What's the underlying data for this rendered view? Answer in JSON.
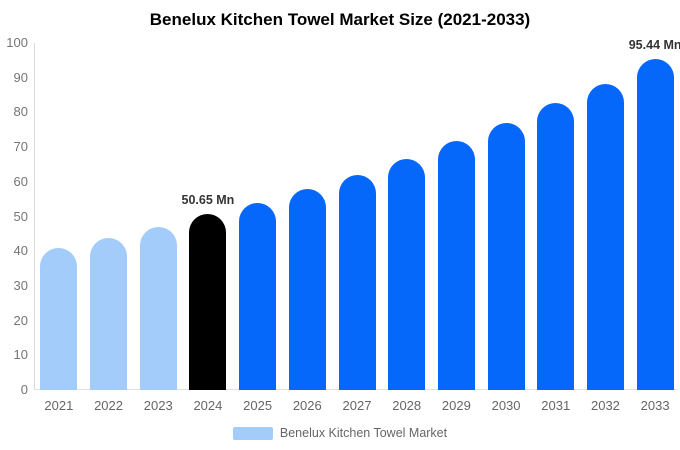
{
  "title": "Benelux Kitchen Towel Market Size (2021-2033)",
  "legend": {
    "label": "Benelux Kitchen Towel Market"
  },
  "colors": {
    "past_bar": "#A3CCFA",
    "highlight_bar": "#000000",
    "forecast_bar": "#0667FB",
    "axis_line": "#D9D9D9",
    "tick_label": "#757575",
    "annotation_text": "#333333",
    "legend_text": "#666666",
    "background": "#FFFFFF"
  },
  "chart_data": {
    "type": "bar",
    "title": "Benelux Kitchen Towel Market Size (2021-2033)",
    "series_name": "Benelux Kitchen Towel Market",
    "categories": [
      "2021",
      "2022",
      "2023",
      "2024",
      "2025",
      "2026",
      "2027",
      "2028",
      "2029",
      "2030",
      "2031",
      "2032",
      "2033"
    ],
    "values": [
      40.9,
      43.8,
      47.1,
      50.65,
      54.0,
      58.0,
      62.0,
      66.6,
      71.8,
      77.0,
      82.7,
      88.3,
      95.44
    ],
    "unit": "Mn",
    "bar_roles": [
      "past",
      "past",
      "past",
      "highlight",
      "forecast",
      "forecast",
      "forecast",
      "forecast",
      "forecast",
      "forecast",
      "forecast",
      "forecast",
      "forecast"
    ],
    "annotations": [
      {
        "category": "2024",
        "text": "50.65 Mn"
      },
      {
        "category": "2033",
        "text": "95.44 Mn"
      }
    ],
    "xlabel": "",
    "ylabel": "",
    "ylim": [
      0,
      100
    ],
    "y_ticks": [
      0,
      10,
      20,
      30,
      40,
      50,
      60,
      70,
      80,
      90,
      100
    ],
    "grid": false,
    "legend_position": "bottom"
  }
}
